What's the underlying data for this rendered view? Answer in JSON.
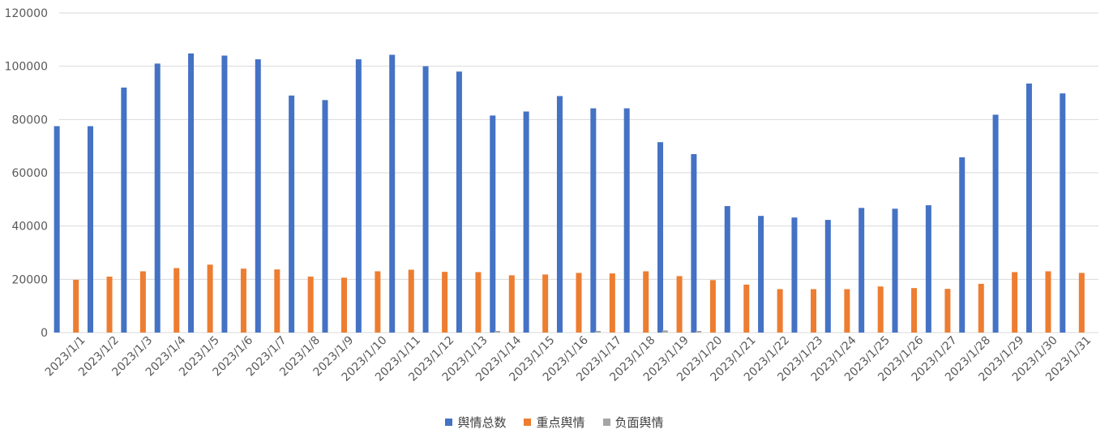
{
  "chart_data": {
    "type": "bar",
    "title": "",
    "xlabel": "",
    "ylabel": "",
    "ylim": [
      0,
      120000
    ],
    "yticks": [
      0,
      20000,
      40000,
      60000,
      80000,
      100000,
      120000
    ],
    "grid": true,
    "legend_position": "bottom",
    "categories": [
      "2023/1/1",
      "2023/1/2",
      "2023/1/3",
      "2023/1/4",
      "2023/1/5",
      "2023/1/6",
      "2023/1/7",
      "2023/1/8",
      "2023/1/9",
      "2023/1/10",
      "2023/1/11",
      "2023/1/12",
      "2023/1/13",
      "2023/1/14",
      "2023/1/15",
      "2023/1/16",
      "2023/1/17",
      "2023/1/18",
      "2023/1/19",
      "2023/1/20",
      "2023/1/21",
      "2023/1/22",
      "2023/1/23",
      "2023/1/24",
      "2023/1/25",
      "2023/1/26",
      "2023/1/27",
      "2023/1/28",
      "2023/1/29",
      "2023/1/30",
      "2023/1/31"
    ],
    "series": [
      {
        "name": "舆情总数",
        "color": "#4472C4",
        "values": [
          77500,
          77500,
          92000,
          101000,
          104800,
          104000,
          102600,
          89000,
          87300,
          102600,
          104300,
          100000,
          98000,
          81500,
          83000,
          88800,
          84200,
          84200,
          71500,
          67000,
          47500,
          43800,
          43200,
          42300,
          46800,
          46500,
          47800,
          65800,
          81800,
          93500,
          89800
        ]
      },
      {
        "name": "重点舆情",
        "color": "#ED7D31",
        "values": [
          19800,
          21000,
          23000,
          24200,
          25500,
          24000,
          23700,
          21000,
          20600,
          23000,
          23600,
          22800,
          22700,
          21500,
          21800,
          22400,
          22200,
          23000,
          21200,
          19700,
          18000,
          16300,
          16300,
          16300,
          17300,
          16700,
          16400,
          18300,
          22700,
          23000,
          22400
        ]
      },
      {
        "name": "负面舆情",
        "color": "#A5A5A5",
        "values": [
          0,
          0,
          0,
          0,
          0,
          0,
          0,
          0,
          0,
          0,
          0,
          0,
          600,
          0,
          0,
          600,
          0,
          800,
          600,
          0,
          0,
          0,
          0,
          0,
          0,
          0,
          0,
          0,
          0,
          0,
          0
        ]
      }
    ]
  }
}
